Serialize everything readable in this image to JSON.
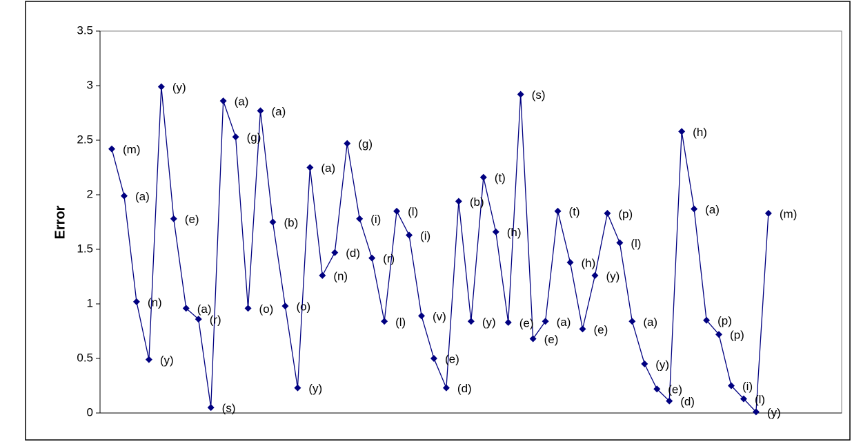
{
  "chart_data": {
    "type": "line",
    "y_label": "Error",
    "categories": [
      null,
      null,
      null,
      null,
      null,
      null,
      null,
      null,
      null,
      null,
      null,
      null,
      null,
      null,
      null,
      null,
      null,
      null,
      null,
      null,
      null,
      null,
      null,
      null,
      null,
      null,
      null,
      null,
      null,
      null,
      null,
      null,
      null,
      null,
      null,
      null,
      null,
      null,
      null,
      null,
      null,
      null,
      null,
      null,
      null,
      null,
      null,
      null,
      null,
      null,
      null,
      null,
      null,
      null
    ],
    "values": [
      2.42,
      1.99,
      1.02,
      0.49,
      2.99,
      1.78,
      0.96,
      0.86,
      0.05,
      2.86,
      2.53,
      0.96,
      2.77,
      1.75,
      0.98,
      0.23,
      2.25,
      1.26,
      1.47,
      2.47,
      1.78,
      1.42,
      0.84,
      1.85,
      1.63,
      0.89,
      0.5,
      0.23,
      1.94,
      0.84,
      2.16,
      1.66,
      0.83,
      2.92,
      0.68,
      0.84,
      1.85,
      1.38,
      0.77,
      1.26,
      1.83,
      1.56,
      0.84,
      0.45,
      0.22,
      0.11,
      2.58,
      1.87,
      0.85,
      0.72,
      0.25,
      0.13,
      0.01,
      1.83
    ],
    "value_labels": [
      "(m)",
      "(a)",
      "(n)",
      "(y)",
      "(y)",
      "(e)",
      "(a)",
      "(r)",
      "(s)",
      "(a)",
      "(g)",
      "(o)",
      "(a)",
      "(b)",
      "(o)",
      "(y)",
      "(a)",
      "(n)",
      "(d)",
      "(g)",
      "(i)",
      "(r)",
      "(l)",
      "(l)",
      "(i)",
      "(v)",
      "(e)",
      "(d)",
      "(b)",
      "(y)",
      "(t)",
      "(h)",
      "(e)",
      "(s)",
      "(e)",
      "(a)",
      "(t)",
      "(h)",
      "(e)",
      "(y)",
      "(p)",
      "(l)",
      "(a)",
      "(y)",
      "(e)",
      "(d)",
      "(h)",
      "(a)",
      "(p)",
      "(p)",
      "(i)",
      "(l)",
      "(y)",
      "(m)"
    ],
    "color": "#000080",
    "ylim": [
      0,
      3.5
    ],
    "yticks": [
      0,
      0.5,
      1,
      1.5,
      2,
      2.5,
      3,
      3.5
    ],
    "grid": false
  }
}
